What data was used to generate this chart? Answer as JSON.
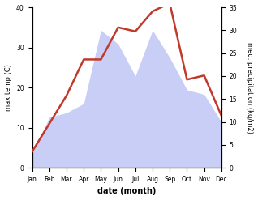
{
  "months": [
    "Jan",
    "Feb",
    "Mar",
    "Apr",
    "May",
    "Jun",
    "Jul",
    "Aug",
    "Sep",
    "Oct",
    "Nov",
    "Dec"
  ],
  "temperature": [
    4,
    11,
    18,
    27,
    27,
    35,
    34,
    39,
    41,
    22,
    23,
    13
  ],
  "precipitation": [
    3,
    11,
    12,
    14,
    30,
    27,
    20,
    30,
    24,
    17,
    16,
    10
  ],
  "temp_color": "#c0392b",
  "precip_fill_color": "#c8cef5",
  "temp_ylim": [
    0,
    40
  ],
  "precip_ylim": [
    0,
    35
  ],
  "temp_yticks": [
    0,
    10,
    20,
    30,
    40
  ],
  "precip_yticks": [
    0,
    5,
    10,
    15,
    20,
    25,
    30,
    35
  ],
  "xlabel": "date (month)",
  "ylabel_left": "max temp (C)",
  "ylabel_right": "med. precipitation (kg/m2)",
  "bg_color": "#ffffff"
}
